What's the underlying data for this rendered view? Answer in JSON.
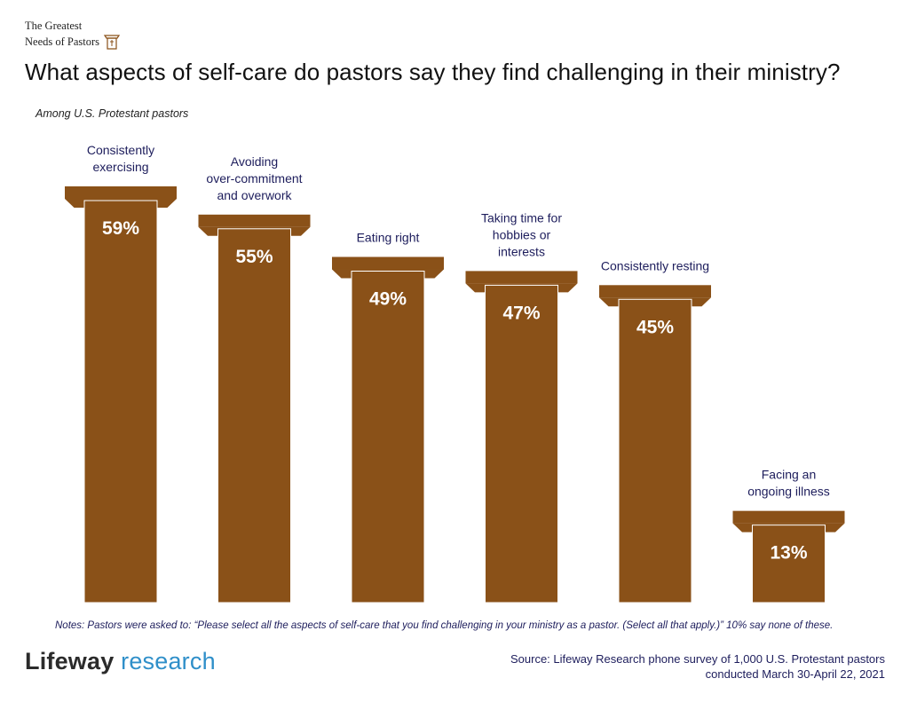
{
  "header": {
    "brand_line1": "The Greatest",
    "brand_line2": "Needs of Pastors",
    "title": "What aspects of self-care do pastors say they find challenging in their ministry?",
    "subtitle": "Among U.S. Protestant pastors"
  },
  "colors": {
    "bar": "#8a5118",
    "bar_outline": "#ffffff",
    "label": "#1d1d5c",
    "value": "#ffffff"
  },
  "chart_data": {
    "type": "bar",
    "title": "What aspects of self-care do pastors say they find challenging in their ministry?",
    "subtitle": "Among U.S. Protestant pastors",
    "categories": [
      [
        "Consistently",
        "exercising"
      ],
      [
        "Avoiding",
        "over-commitment",
        "and overwork"
      ],
      [
        "Eating right"
      ],
      [
        "Taking time for",
        "hobbies or",
        "interests"
      ],
      [
        "Consistently resting"
      ],
      [
        "Facing an",
        "ongoing illness"
      ]
    ],
    "values": [
      59,
      55,
      49,
      47,
      45,
      13
    ],
    "value_labels": [
      "59%",
      "55%",
      "49%",
      "47%",
      "45%",
      "13%"
    ],
    "unit": "%",
    "ylim": [
      0,
      100
    ],
    "grid": false,
    "legend": "none"
  },
  "footer": {
    "notes": "Notes: Pastors were asked to: “Please select all the aspects of self-care that you find challenging in your ministry as a pastor. (Select all that apply.)” 10% say none of these.",
    "logo_brand": "Lifeway",
    "logo_sub": "research",
    "source_line1": "Source: Lifeway Research phone survey of 1,000 U.S. Protestant pastors",
    "source_line2": "conducted March 30-April 22, 2021"
  }
}
